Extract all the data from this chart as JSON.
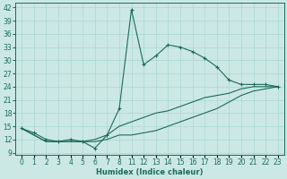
{
  "xlabel": "Humidex (Indice chaleur)",
  "background_color": "#cce8e4",
  "line_color": "#1a6b5a",
  "x_positions": [
    0,
    1,
    2,
    3,
    4,
    5,
    6,
    7,
    8,
    9,
    10,
    11,
    12,
    13,
    14,
    15,
    16,
    17,
    18,
    19,
    20,
    21
  ],
  "x_labels": [
    "0",
    "1",
    "2",
    "3",
    "4",
    "5",
    "6",
    "7",
    "8",
    "11",
    "12",
    "13",
    "14",
    "15",
    "16",
    "17",
    "18",
    "19",
    "20",
    "21",
    "22",
    "23"
  ],
  "humidex_main": [
    14.5,
    13.5,
    12.0,
    11.5,
    12.0,
    11.5,
    10.0,
    13.0,
    19.0,
    41.5,
    29.0,
    31.0,
    33.5,
    33.0,
    32.0,
    30.5,
    28.5,
    25.5,
    24.5,
    24.5,
    24.5,
    24.0
  ],
  "humidex_low": [
    14.5,
    13.0,
    11.5,
    11.5,
    11.5,
    11.5,
    11.5,
    12.0,
    13.0,
    13.0,
    13.5,
    14.0,
    15.0,
    16.0,
    17.0,
    18.0,
    19.0,
    20.5,
    22.0,
    23.0,
    23.5,
    24.0
  ],
  "humidex_mid": [
    14.5,
    13.0,
    11.5,
    11.5,
    11.5,
    11.5,
    12.0,
    13.0,
    15.0,
    16.0,
    17.0,
    18.0,
    18.5,
    19.5,
    20.5,
    21.5,
    22.0,
    22.5,
    23.5,
    24.0,
    24.0,
    24.0
  ],
  "yticks": [
    9,
    12,
    15,
    18,
    21,
    24,
    27,
    30,
    33,
    36,
    39,
    42
  ],
  "ylim": [
    8.5,
    43
  ],
  "xlim": [
    -0.5,
    21.5
  ],
  "grid_color": "#a8d8d0",
  "ylabel_fontsize": 6.0,
  "tick_fontsize": 5.5
}
